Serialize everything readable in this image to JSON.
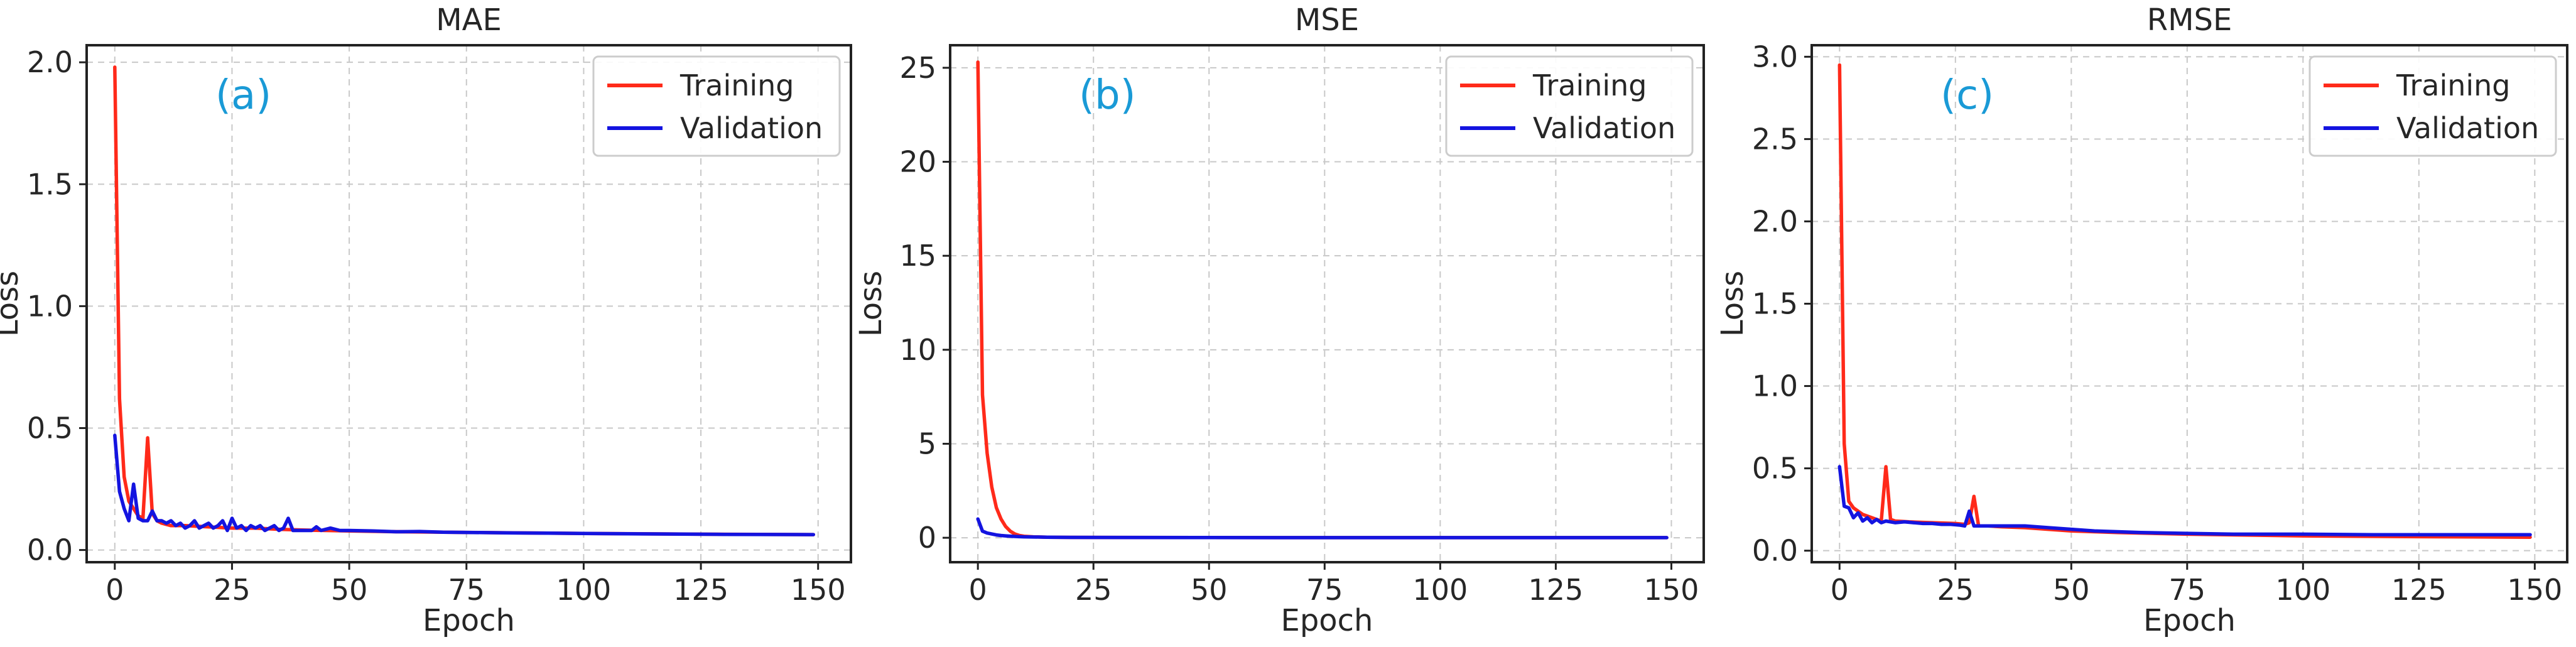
{
  "chart_data": [
    {
      "type": "line",
      "title": "MAE",
      "panel_label": "(a)",
      "xlabel": "Epoch",
      "ylabel": "Loss",
      "xlim": [
        -6,
        157
      ],
      "ylim": [
        -0.05,
        2.07
      ],
      "xticks": [
        0,
        25,
        50,
        75,
        100,
        125,
        150
      ],
      "yticks": [
        0.0,
        0.5,
        1.0,
        1.5,
        2.0
      ],
      "ytick_labels": [
        "0.0",
        "0.5",
        "1.0",
        "1.5",
        "2.0"
      ],
      "grid": true,
      "legend_position": "top-right",
      "series": [
        {
          "name": "Training",
          "color": "#ff2a1a",
          "points": [
            [
              0,
              1.98
            ],
            [
              1,
              0.62
            ],
            [
              2,
              0.3
            ],
            [
              3,
              0.2
            ],
            [
              4,
              0.17
            ],
            [
              5,
              0.14
            ],
            [
              6,
              0.13
            ],
            [
              7,
              0.46
            ],
            [
              8,
              0.15
            ],
            [
              9,
              0.12
            ],
            [
              10,
              0.11
            ],
            [
              12,
              0.1
            ],
            [
              15,
              0.1
            ],
            [
              20,
              0.095
            ],
            [
              25,
              0.09
            ],
            [
              30,
              0.09
            ],
            [
              35,
              0.085
            ],
            [
              40,
              0.082
            ],
            [
              45,
              0.08
            ],
            [
              50,
              0.078
            ],
            [
              60,
              0.075
            ],
            [
              75,
              0.072
            ],
            [
              100,
              0.068
            ],
            [
              125,
              0.065
            ],
            [
              149,
              0.063
            ]
          ]
        },
        {
          "name": "Validation",
          "color": "#1414e0",
          "points": [
            [
              0,
              0.47
            ],
            [
              1,
              0.24
            ],
            [
              2,
              0.17
            ],
            [
              3,
              0.12
            ],
            [
              4,
              0.27
            ],
            [
              5,
              0.13
            ],
            [
              6,
              0.12
            ],
            [
              7,
              0.12
            ],
            [
              8,
              0.16
            ],
            [
              9,
              0.12
            ],
            [
              10,
              0.12
            ],
            [
              11,
              0.11
            ],
            [
              12,
              0.12
            ],
            [
              13,
              0.1
            ],
            [
              14,
              0.11
            ],
            [
              15,
              0.09
            ],
            [
              16,
              0.1
            ],
            [
              17,
              0.12
            ],
            [
              18,
              0.09
            ],
            [
              19,
              0.1
            ],
            [
              20,
              0.11
            ],
            [
              21,
              0.09
            ],
            [
              22,
              0.1
            ],
            [
              23,
              0.12
            ],
            [
              24,
              0.08
            ],
            [
              25,
              0.13
            ],
            [
              26,
              0.09
            ],
            [
              27,
              0.1
            ],
            [
              28,
              0.08
            ],
            [
              29,
              0.1
            ],
            [
              30,
              0.09
            ],
            [
              31,
              0.1
            ],
            [
              32,
              0.08
            ],
            [
              33,
              0.09
            ],
            [
              34,
              0.1
            ],
            [
              35,
              0.08
            ],
            [
              36,
              0.09
            ],
            [
              37,
              0.13
            ],
            [
              38,
              0.08
            ],
            [
              40,
              0.08
            ],
            [
              42,
              0.08
            ],
            [
              43,
              0.095
            ],
            [
              44,
              0.08
            ],
            [
              46,
              0.09
            ],
            [
              48,
              0.08
            ],
            [
              50,
              0.08
            ],
            [
              55,
              0.078
            ],
            [
              60,
              0.075
            ],
            [
              65,
              0.076
            ],
            [
              70,
              0.073
            ],
            [
              75,
              0.072
            ],
            [
              85,
              0.07
            ],
            [
              100,
              0.068
            ],
            [
              115,
              0.066
            ],
            [
              130,
              0.064
            ],
            [
              149,
              0.063
            ]
          ]
        }
      ]
    },
    {
      "type": "line",
      "title": "MSE",
      "panel_label": "(b)",
      "xlabel": "Epoch",
      "ylabel": "Loss",
      "xlim": [
        -6,
        157
      ],
      "ylim": [
        -1.3,
        26.2
      ],
      "xticks": [
        0,
        25,
        50,
        75,
        100,
        125,
        150
      ],
      "yticks": [
        0,
        5,
        10,
        15,
        20,
        25
      ],
      "ytick_labels": [
        "0",
        "5",
        "10",
        "15",
        "20",
        "25"
      ],
      "grid": true,
      "legend_position": "top-right",
      "series": [
        {
          "name": "Training",
          "color": "#ff2a1a",
          "points": [
            [
              0,
              25.3
            ],
            [
              1,
              7.6
            ],
            [
              2,
              4.5
            ],
            [
              3,
              2.7
            ],
            [
              4,
              1.6
            ],
            [
              5,
              1.0
            ],
            [
              6,
              0.6
            ],
            [
              7,
              0.35
            ],
            [
              8,
              0.2
            ],
            [
              9,
              0.12
            ],
            [
              10,
              0.08
            ],
            [
              12,
              0.05
            ],
            [
              15,
              0.03
            ],
            [
              20,
              0.02
            ],
            [
              30,
              0.015
            ],
            [
              50,
              0.01
            ],
            [
              100,
              0.008
            ],
            [
              149,
              0.006
            ]
          ]
        },
        {
          "name": "Validation",
          "color": "#1414e0",
          "points": [
            [
              0,
              1.0
            ],
            [
              1,
              0.35
            ],
            [
              2,
              0.25
            ],
            [
              3,
              0.2
            ],
            [
              4,
              0.15
            ],
            [
              5,
              0.12
            ],
            [
              6,
              0.1
            ],
            [
              8,
              0.07
            ],
            [
              10,
              0.05
            ],
            [
              15,
              0.03
            ],
            [
              20,
              0.02
            ],
            [
              30,
              0.015
            ],
            [
              50,
              0.01
            ],
            [
              100,
              0.008
            ],
            [
              149,
              0.006
            ]
          ]
        }
      ]
    },
    {
      "type": "line",
      "title": "RMSE",
      "panel_label": "(c)",
      "xlabel": "Epoch",
      "ylabel": "Loss",
      "xlim": [
        -6,
        157
      ],
      "ylim": [
        -0.07,
        3.07
      ],
      "xticks": [
        0,
        25,
        50,
        75,
        100,
        125,
        150
      ],
      "yticks": [
        0.0,
        0.5,
        1.0,
        1.5,
        2.0,
        2.5,
        3.0
      ],
      "ytick_labels": [
        "0.0",
        "0.5",
        "1.0",
        "1.5",
        "2.0",
        "2.5",
        "3.0"
      ],
      "grid": true,
      "legend_position": "top-right",
      "series": [
        {
          "name": "Training",
          "color": "#ff2a1a",
          "points": [
            [
              0,
              2.95
            ],
            [
              1,
              0.65
            ],
            [
              2,
              0.3
            ],
            [
              3,
              0.26
            ],
            [
              4,
              0.24
            ],
            [
              5,
              0.22
            ],
            [
              6,
              0.21
            ],
            [
              7,
              0.2
            ],
            [
              8,
              0.19
            ],
            [
              9,
              0.18
            ],
            [
              10,
              0.51
            ],
            [
              11,
              0.19
            ],
            [
              12,
              0.18
            ],
            [
              15,
              0.175
            ],
            [
              20,
              0.17
            ],
            [
              25,
              0.165
            ],
            [
              27,
              0.16
            ],
            [
              28,
              0.17
            ],
            [
              29,
              0.33
            ],
            [
              30,
              0.15
            ],
            [
              32,
              0.15
            ],
            [
              35,
              0.145
            ],
            [
              40,
              0.14
            ],
            [
              45,
              0.13
            ],
            [
              50,
              0.12
            ],
            [
              60,
              0.11
            ],
            [
              75,
              0.1
            ],
            [
              100,
              0.09
            ],
            [
              125,
              0.085
            ],
            [
              149,
              0.082
            ]
          ]
        },
        {
          "name": "Validation",
          "color": "#1414e0",
          "points": [
            [
              0,
              0.51
            ],
            [
              1,
              0.27
            ],
            [
              2,
              0.26
            ],
            [
              3,
              0.2
            ],
            [
              4,
              0.23
            ],
            [
              5,
              0.18
            ],
            [
              6,
              0.2
            ],
            [
              7,
              0.17
            ],
            [
              8,
              0.19
            ],
            [
              9,
              0.17
            ],
            [
              10,
              0.18
            ],
            [
              12,
              0.17
            ],
            [
              14,
              0.175
            ],
            [
              16,
              0.17
            ],
            [
              18,
              0.165
            ],
            [
              20,
              0.165
            ],
            [
              22,
              0.16
            ],
            [
              24,
              0.16
            ],
            [
              26,
              0.155
            ],
            [
              27,
              0.15
            ],
            [
              28,
              0.24
            ],
            [
              29,
              0.15
            ],
            [
              30,
              0.15
            ],
            [
              35,
              0.15
            ],
            [
              40,
              0.15
            ],
            [
              45,
              0.14
            ],
            [
              50,
              0.13
            ],
            [
              55,
              0.12
            ],
            [
              60,
              0.115
            ],
            [
              65,
              0.11
            ],
            [
              75,
              0.105
            ],
            [
              85,
              0.1
            ],
            [
              100,
              0.1
            ],
            [
              115,
              0.097
            ],
            [
              130,
              0.097
            ],
            [
              149,
              0.097
            ]
          ]
        }
      ]
    }
  ]
}
